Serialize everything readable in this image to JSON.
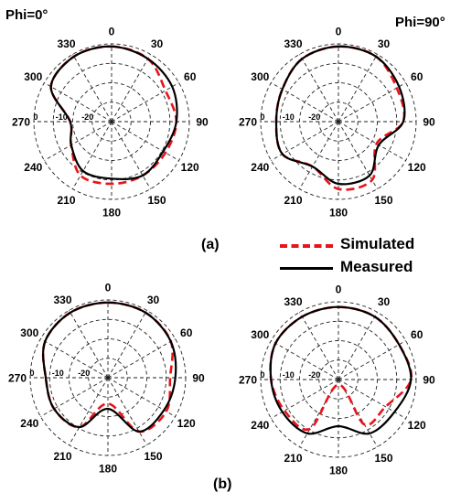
{
  "labels": {
    "phi0": "Phi=0°",
    "phi90": "Phi=90°",
    "panel_a": "(a)",
    "panel_b": "(b)"
  },
  "legend": {
    "simulated": "Simulated",
    "measured": "Measured",
    "simulated_color": "#e8131a",
    "measured_color": "#000000"
  },
  "chart_data": [
    {
      "type": "polar-line",
      "panel": "(a)",
      "plane": "Phi=0°",
      "angle_ticks": [
        "0",
        "30",
        "60",
        "90",
        "120",
        "150",
        "180",
        "210",
        "240",
        "270",
        "300",
        "330"
      ],
      "radial_ticks": [
        "0",
        "-10",
        "-20"
      ],
      "rlim": [
        -30,
        0
      ],
      "angles_deg": [
        0,
        30,
        60,
        90,
        120,
        150,
        180,
        210,
        240,
        270,
        300,
        330
      ],
      "series": [
        {
          "name": "Simulated",
          "values": [
            -1,
            -2,
            -6,
            -5,
            -6,
            -6,
            -6,
            -6,
            -12,
            -14,
            -3,
            -1
          ]
        },
        {
          "name": "Measured",
          "values": [
            -1,
            -2,
            -3,
            -5,
            -7,
            -6,
            -8,
            -8,
            -12,
            -14,
            -3,
            -1
          ]
        }
      ]
    },
    {
      "type": "polar-line",
      "panel": "(a)",
      "plane": "Phi=90°",
      "angle_ticks": [
        "0",
        "30",
        "60",
        "90",
        "120",
        "150",
        "180",
        "210",
        "240",
        "270",
        "300",
        "330"
      ],
      "radial_ticks": [
        "0",
        "-10",
        "-20"
      ],
      "rlim": [
        -30,
        0
      ],
      "angles_deg": [
        0,
        30,
        60,
        90,
        120,
        150,
        180,
        210,
        240,
        270,
        300,
        330
      ],
      "series": [
        {
          "name": "Simulated",
          "values": [
            -1,
            -1,
            -4,
            -5,
            -13,
            -4,
            -4,
            -10,
            -5,
            -6,
            -5,
            -2
          ]
        },
        {
          "name": "Measured",
          "values": [
            -1,
            -1,
            -3,
            -5,
            -12,
            -6,
            -6,
            -10,
            -5,
            -6,
            -5,
            -2
          ]
        }
      ]
    },
    {
      "type": "polar-line",
      "panel": "(b)",
      "plane": "Phi=0°",
      "angle_ticks": [
        "0",
        "30",
        "60",
        "90",
        "120",
        "150",
        "180",
        "210",
        "240",
        "270",
        "300",
        "330"
      ],
      "radial_ticks": [
        "0",
        "-10",
        "-20"
      ],
      "rlim": [
        -30,
        0
      ],
      "angles_deg": [
        0,
        30,
        60,
        90,
        120,
        150,
        180,
        210,
        240,
        270,
        300,
        330
      ],
      "series": [
        {
          "name": "Simulated",
          "values": [
            -1,
            -1,
            -2,
            -6,
            -4,
            -6,
            -20,
            -8,
            -6,
            -6,
            -2,
            -1
          ]
        },
        {
          "name": "Measured",
          "values": [
            -1,
            -1,
            -2,
            -4,
            -5,
            -6,
            -18,
            -8,
            -6,
            -6,
            -2,
            -1
          ]
        }
      ]
    },
    {
      "type": "polar-line",
      "panel": "(b)",
      "plane": "Phi=90°",
      "angle_ticks": [
        "0",
        "30",
        "60",
        "90",
        "120",
        "150",
        "180",
        "210",
        "240",
        "270",
        "300",
        "330"
      ],
      "radial_ticks": [
        "0",
        "-10",
        "-20"
      ],
      "rlim": [
        -30,
        0
      ],
      "angles_deg": [
        0,
        30,
        60,
        90,
        120,
        150,
        180,
        210,
        240,
        270,
        300,
        330
      ],
      "series": [
        {
          "name": "Simulated",
          "values": [
            -2,
            -2,
            -3,
            -2,
            -9,
            -10,
            -28,
            -8,
            -6,
            -4,
            -2,
            -2
          ]
        },
        {
          "name": "Measured",
          "values": [
            -2,
            -2,
            -3,
            -2,
            -5,
            -6,
            -12,
            -6,
            -5,
            -4,
            -2,
            -2
          ]
        }
      ]
    }
  ]
}
